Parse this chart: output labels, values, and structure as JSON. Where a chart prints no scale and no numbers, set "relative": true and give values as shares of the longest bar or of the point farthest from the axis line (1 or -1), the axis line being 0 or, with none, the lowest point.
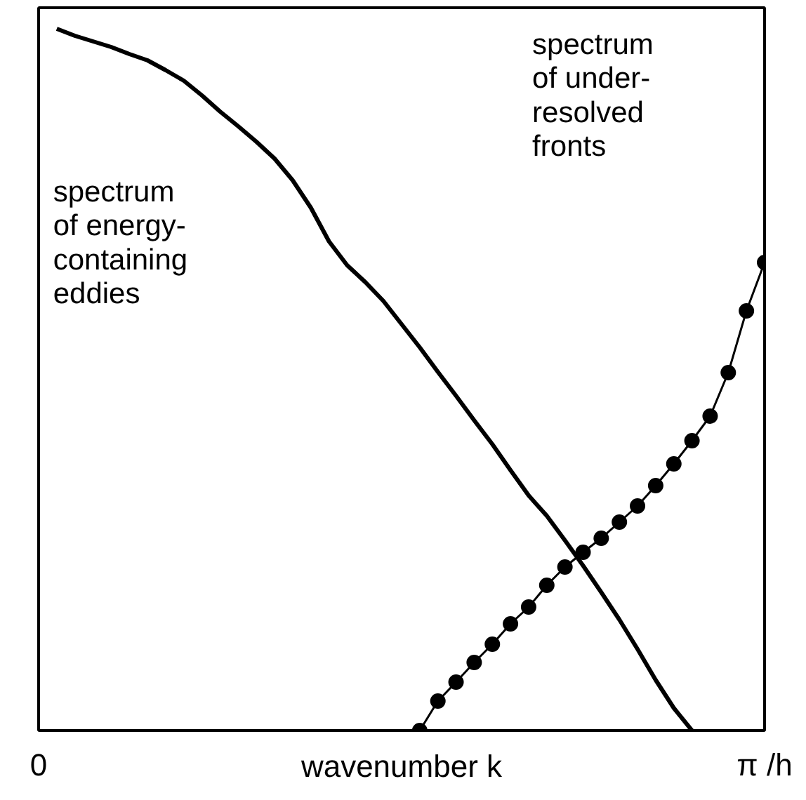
{
  "chart_data": {
    "type": "line",
    "relative": true,
    "xlabel": "wavenumber k",
    "grid": false,
    "categories": [
      "0",
      null,
      null,
      null,
      null,
      null,
      null,
      null,
      null,
      null,
      null,
      null,
      null,
      null,
      null,
      null,
      null,
      null,
      null,
      null,
      null,
      null,
      null,
      null,
      null,
      null,
      null,
      null,
      null,
      null,
      null,
      null,
      null,
      null,
      null,
      null,
      null,
      null,
      null,
      null,
      "π /h"
    ],
    "series": [
      {
        "color": "#000000",
        "marker": "none",
        "values": [
          null,
          1.0,
          0.99,
          0.982,
          0.974,
          0.964,
          0.955,
          0.941,
          0.926,
          0.905,
          0.882,
          0.861,
          0.839,
          0.815,
          0.784,
          0.745,
          0.697,
          0.663,
          0.639,
          0.612,
          0.579,
          0.546,
          0.511,
          0.477,
          0.442,
          0.408,
          0.371,
          0.335,
          0.306,
          0.271,
          0.235,
          0.197,
          0.158,
          0.116,
          0.072,
          0.032,
          0.0,
          null,
          null,
          null,
          null
        ]
      },
      {
        "color": "#000000",
        "marker": "circle",
        "values": [
          null,
          null,
          null,
          null,
          null,
          null,
          null,
          null,
          null,
          null,
          null,
          null,
          null,
          null,
          null,
          null,
          null,
          null,
          null,
          null,
          null,
          0.0,
          0.042,
          0.069,
          0.097,
          0.123,
          0.152,
          0.176,
          0.207,
          0.233,
          0.254,
          0.274,
          0.297,
          0.32,
          0.349,
          0.38,
          0.413,
          0.448,
          0.51,
          0.598,
          0.667
        ]
      }
    ],
    "annotations": [
      "spectrum\nof energy-\ncontaining\neddies",
      "spectrum\nof under-\nresolved\nfronts"
    ]
  }
}
